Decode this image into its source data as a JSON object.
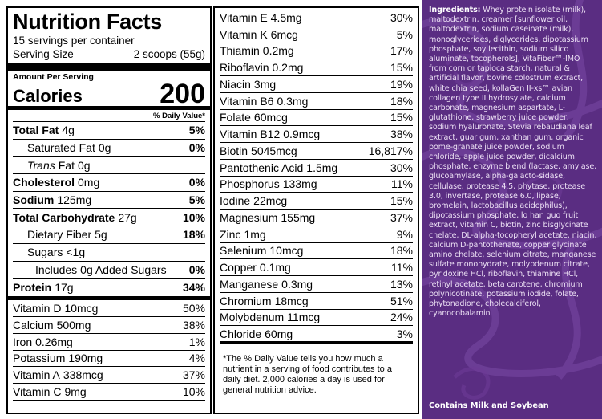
{
  "panel": {
    "title": "Nutrition Facts",
    "servings": "15 servings per container",
    "serving_size_label": "Serving Size",
    "serving_size_value": "2 scoops (55g)",
    "amount_per_serving": "Amount Per Serving",
    "calories_label": "Calories",
    "calories_value": "200",
    "dv_header": "% Daily Value*",
    "macros": [
      {
        "name": "Total Fat",
        "amount": "4g",
        "dv": "5%",
        "bold": true
      },
      {
        "name": "Saturated Fat",
        "amount": "0g",
        "dv": "0%",
        "indent": 1
      },
      {
        "name_italic": "Trans",
        "name": "Fat",
        "amount": "0g",
        "dv": "",
        "indent": 1
      },
      {
        "name": "Cholesterol",
        "amount": "0mg",
        "dv": "0%",
        "bold": true
      },
      {
        "name": "Sodium",
        "amount": "125mg",
        "dv": "5%",
        "bold": true
      },
      {
        "name": "Total Carbohydrate",
        "amount": "27g",
        "dv": "10%",
        "bold": true
      },
      {
        "name": "Dietary Fiber",
        "amount": "5g",
        "dv": "18%",
        "indent": 1
      },
      {
        "name": "Sugars",
        "amount": "<1g",
        "dv": "",
        "indent": 1
      },
      {
        "name": "Includes",
        "amount": "0g Added Sugars",
        "dv": "0%",
        "indent": 2
      },
      {
        "name": "Protein",
        "amount": "17g",
        "dv": "34%",
        "bold": true
      }
    ],
    "vitamins_left": [
      {
        "name": "Vitamin D",
        "amount": "10mcg",
        "dv": "50%"
      },
      {
        "name": "Calcium",
        "amount": "500mg",
        "dv": "38%"
      },
      {
        "name": "Iron",
        "amount": "0.26mg",
        "dv": "1%"
      },
      {
        "name": "Potassium",
        "amount": "190mg",
        "dv": "4%"
      },
      {
        "name": "Vitamin A",
        "amount": "338mcg",
        "dv": "37%"
      },
      {
        "name": "Vitamin C",
        "amount": "9mg",
        "dv": "10%"
      }
    ],
    "vitamins_right": [
      {
        "name": "Vitamin E",
        "amount": "4.5mg",
        "dv": "30%"
      },
      {
        "name": "Vitamin K",
        "amount": "6mcg",
        "dv": "5%"
      },
      {
        "name": "Thiamin",
        "amount": "0.2mg",
        "dv": "17%"
      },
      {
        "name": "Riboflavin",
        "amount": "0.2mg",
        "dv": "15%"
      },
      {
        "name": "Niacin",
        "amount": "3mg",
        "dv": "19%"
      },
      {
        "name": "Vitamin B6",
        "amount": "0.3mg",
        "dv": "18%"
      },
      {
        "name": "Folate",
        "amount": "60mcg",
        "dv": "15%"
      },
      {
        "name": "Vitamin B12",
        "amount": "0.9mcg",
        "dv": "38%"
      },
      {
        "name": "Biotin",
        "amount": "5045mcg",
        "dv": "16,817%"
      },
      {
        "name": "Pantothenic Acid",
        "amount": "1.5mg",
        "dv": "30%"
      },
      {
        "name": "Phosphorus",
        "amount": "133mg",
        "dv": "11%"
      },
      {
        "name": "Iodine",
        "amount": "22mcg",
        "dv": "15%"
      },
      {
        "name": "Magnesium",
        "amount": "155mg",
        "dv": "37%"
      },
      {
        "name": "Zinc",
        "amount": "1mg",
        "dv": "9%"
      },
      {
        "name": "Selenium",
        "amount": "10mcg",
        "dv": "18%"
      },
      {
        "name": "Copper",
        "amount": "0.1mg",
        "dv": "11%"
      },
      {
        "name": "Manganese",
        "amount": "0.3mg",
        "dv": "13%"
      },
      {
        "name": "Chromium",
        "amount": "18mcg",
        "dv": "51%"
      },
      {
        "name": "Molybdenum",
        "amount": "11mcg",
        "dv": "24%"
      },
      {
        "name": "Chloride",
        "amount": "60mg",
        "dv": "3%"
      }
    ],
    "footnote": "*The % Daily Value tells you how much a nutrient in a serving of food contributes to a daily diet. 2,000 calories a day is used for general nutrition advice."
  },
  "ingredients": {
    "heading": "Ingredients:",
    "text": "Whey protein isolate (milk), maltodextrin, creamer [sunflower oil, maltodextrin, sodium caseinate (milk), monoglycerides, diglycerides, dipotassium phosphate, soy lecithin, sodium silico aluminate, tocopherols], VitaFiber™-IMO from corn or tapioca starch, natural & artificial flavor, bovine colostrum extract, white chia seed, kollaGen II-xs™ avian collagen type II hydrosylate, calcium carbonate, magnesium aspartate, L-glutathione, strawberry juice powder, sodium hyaluronate, Stevia rebaudiana leaf extract, guar gum, xanthan gum, organic pome-granate juice powder, sodium chloride, apple juice powder, dicalcium phosphate, enzyme blend (lactase, amylase, glucoamylase, alpha-galacto-sidase, cellulase, protease 4.5, phytase, protease 3.0, invertase, protease 6.0, lipase, bromelain, lactobacillus acidophilus), dipotassium phosphate, lo han guo fruit extract, vitamin C, biotin, zinc bisglycinate chelate, DL-alpha-tocopheryl acetate, niacin, calcium D-pantothenate, copper glycinate amino chelate, selenium citrate, manganese sulfate monohydrate, molybdenum citrate, pyridoxine HCl, riboflavin, thiamine HCl, retinyl acetate, beta carotene, chromium polynicotinate, potassium iodide, folate, phytonadione, cholecalciferol, cyanocobalamin",
    "contains": "Contains Milk and Soybean",
    "background_color": "#5a2d82"
  }
}
